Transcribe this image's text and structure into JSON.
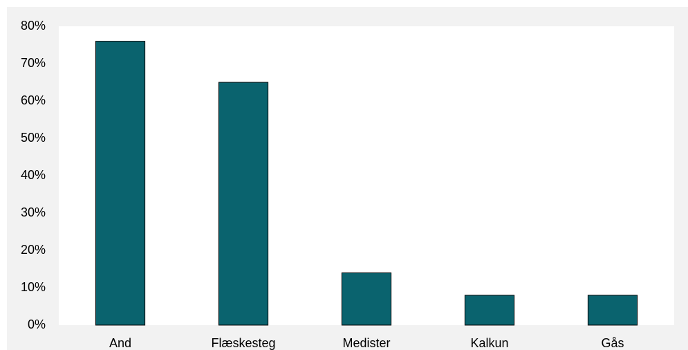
{
  "chart_data": {
    "type": "bar",
    "categories": [
      "And",
      "Flæskesteg",
      "Medister",
      "Kalkun",
      "Gås"
    ],
    "values": [
      76,
      65,
      14,
      8,
      8
    ],
    "color": "#0a636e",
    "ylim": [
      0,
      80
    ],
    "yticks": [
      {
        "value": 0,
        "label": "0%"
      },
      {
        "value": 10,
        "label": "10%"
      },
      {
        "value": 20,
        "label": "20%"
      },
      {
        "value": 30,
        "label": "30%"
      },
      {
        "value": 40,
        "label": "40%"
      },
      {
        "value": 50,
        "label": "50%"
      },
      {
        "value": 60,
        "label": "60%"
      },
      {
        "value": 70,
        "label": "70%"
      },
      {
        "value": 80,
        "label": "80%"
      }
    ],
    "grid": false
  }
}
